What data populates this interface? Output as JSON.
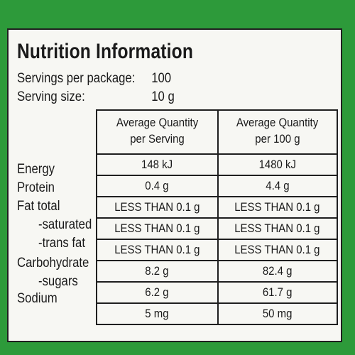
{
  "title": "Nutrition Information",
  "servings": {
    "label": "Servings per package:",
    "value": "100"
  },
  "serving_size": {
    "label": "Serving size:",
    "value": "10 g"
  },
  "columns": [
    "Average Quantity per Serving",
    "Average Quantity per 100 g"
  ],
  "column_lines": [
    [
      "Average Quantity",
      "per Serving"
    ],
    [
      "Average Quantity",
      "per 100 g"
    ]
  ],
  "rows": [
    {
      "nutrient": "Energy",
      "per_serving": "148 kJ",
      "per_100g": "1480 kJ"
    },
    {
      "nutrient": "Protein",
      "per_serving": "0.4 g",
      "per_100g": "4.4 g"
    },
    {
      "nutrient": "Fat total",
      "per_serving": "LESS THAN 0.1 g",
      "per_100g": "LESS THAN 0.1 g"
    },
    {
      "nutrient": "-saturated",
      "per_serving": "LESS THAN 0.1 g",
      "per_100g": "LESS THAN 0.1 g"
    },
    {
      "nutrient": "-trans fat",
      "per_serving": "LESS THAN 0.1 g",
      "per_100g": "LESS THAN 0.1 g"
    },
    {
      "nutrient": "Carbohydrate",
      "per_serving": "8.2 g",
      "per_100g": "82.4 g"
    },
    {
      "nutrient": "-sugars",
      "per_serving": "6.2 g",
      "per_100g": "61.7 g"
    },
    {
      "nutrient": "Sodium",
      "per_serving": "5 mg",
      "per_100g": "50 mg"
    }
  ],
  "colors": {
    "border_green": "#2d9a3a",
    "panel": "#f7f7f3",
    "text": "#1a1a1a"
  }
}
